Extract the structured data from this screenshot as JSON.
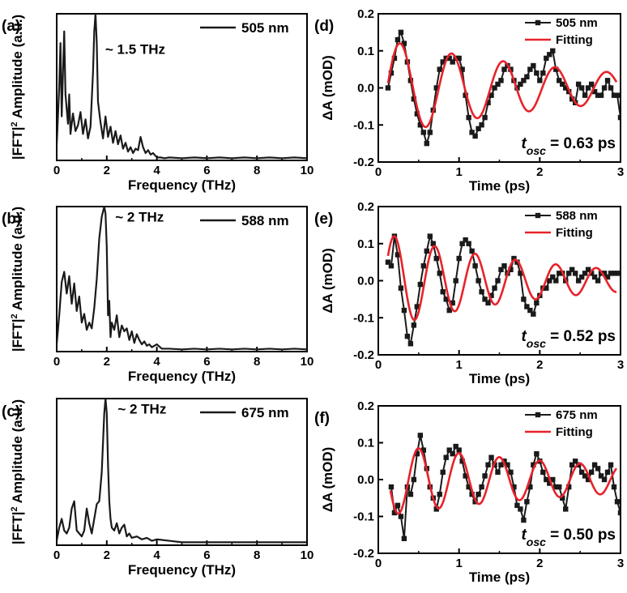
{
  "colors": {
    "data": "#1a1a1a",
    "fit": "#e8222a",
    "axis": "#000000"
  },
  "chart_data": [
    {
      "id": "a",
      "panel_label": "(a)",
      "type": "line",
      "xlabel": "Frequency (THz)",
      "ylabel": "|FFT|² Amplitude (a.u.)",
      "ylabel_parts": [
        "|FFT|",
        "2",
        " Amplitude (a.u.)"
      ],
      "xlim": [
        0,
        10
      ],
      "ylim": [
        0,
        1
      ],
      "xticks": [
        0,
        2,
        4,
        6,
        8,
        10
      ],
      "xtick_labels": [
        "0",
        "2",
        "4",
        "6",
        "8",
        "10"
      ],
      "legend": [
        "505 nm"
      ],
      "annotation": {
        "text": "~ 1.5 THz",
        "x": 1.55,
        "y": 0.76
      },
      "series": [
        {
          "name": "505 nm",
          "x": [
            0.0,
            0.1,
            0.15,
            0.2,
            0.25,
            0.3,
            0.35,
            0.45,
            0.5,
            0.55,
            0.65,
            0.75,
            0.85,
            0.95,
            1.05,
            1.15,
            1.25,
            1.35,
            1.45,
            1.5,
            1.55,
            1.6,
            1.65,
            1.75,
            1.85,
            1.95,
            2.05,
            2.15,
            2.25,
            2.35,
            2.45,
            2.55,
            2.65,
            2.75,
            2.85,
            2.95,
            3.05,
            3.15,
            3.25,
            3.35,
            3.45,
            3.55,
            3.65,
            3.75,
            3.85,
            3.95,
            4.05,
            4.15,
            4.3,
            4.5,
            5.0,
            5.5,
            6.0,
            6.5,
            7.0,
            7.5,
            8.0,
            8.5,
            9.0,
            9.5,
            10.0
          ],
          "y": [
            0.1,
            0.5,
            0.8,
            0.3,
            0.6,
            0.88,
            0.45,
            0.25,
            0.45,
            0.18,
            0.32,
            0.2,
            0.24,
            0.33,
            0.18,
            0.28,
            0.15,
            0.23,
            0.6,
            0.88,
            1.0,
            0.8,
            0.4,
            0.26,
            0.15,
            0.3,
            0.16,
            0.23,
            0.12,
            0.2,
            0.11,
            0.17,
            0.08,
            0.12,
            0.06,
            0.09,
            0.05,
            0.08,
            0.07,
            0.16,
            0.09,
            0.05,
            0.07,
            0.04,
            0.05,
            0.03,
            0.02,
            0.02,
            0.015,
            0.02,
            0.015,
            0.02,
            0.015,
            0.02,
            0.015,
            0.02,
            0.015,
            0.02,
            0.015,
            0.02,
            0.015
          ]
        }
      ]
    },
    {
      "id": "b",
      "panel_label": "(b)",
      "type": "line",
      "xlabel": "Frequency (THz)",
      "ylabel": "|FFT|² Amplitude (a.u.)",
      "ylabel_parts": [
        "|FFT|",
        "2",
        " Amplitude (a.u.)"
      ],
      "xlim": [
        0,
        10
      ],
      "ylim": [
        0,
        1
      ],
      "xticks": [
        0,
        2,
        4,
        6,
        8,
        10
      ],
      "xtick_labels": [
        "0",
        "2",
        "4",
        "6",
        "8",
        "10"
      ],
      "legend": [
        "588 nm"
      ],
      "annotation": {
        "text": "~ 2 THz",
        "x": 1.95,
        "y": 0.93
      },
      "series": [
        {
          "name": "588 nm",
          "x": [
            0.0,
            0.1,
            0.2,
            0.3,
            0.4,
            0.5,
            0.6,
            0.7,
            0.8,
            0.9,
            1.0,
            1.1,
            1.2,
            1.3,
            1.4,
            1.5,
            1.6,
            1.7,
            1.8,
            1.9,
            1.95,
            2.0,
            2.05,
            2.1,
            2.15,
            2.2,
            2.3,
            2.4,
            2.5,
            2.6,
            2.7,
            2.8,
            2.9,
            3.0,
            3.1,
            3.2,
            3.3,
            3.4,
            3.5,
            3.6,
            3.7,
            3.8,
            4.0,
            4.2,
            4.5,
            5.0,
            5.5,
            6.0,
            6.5,
            7.0,
            7.5,
            8.0,
            8.5,
            9.0,
            9.5,
            10.0
          ],
          "y": [
            0.05,
            0.25,
            0.48,
            0.55,
            0.4,
            0.52,
            0.33,
            0.47,
            0.28,
            0.38,
            0.2,
            0.26,
            0.15,
            0.2,
            0.16,
            0.3,
            0.5,
            0.78,
            0.93,
            1.0,
            0.95,
            0.72,
            0.25,
            0.35,
            0.1,
            0.2,
            0.15,
            0.25,
            0.1,
            0.18,
            0.14,
            0.16,
            0.08,
            0.14,
            0.06,
            0.12,
            0.08,
            0.05,
            0.07,
            0.04,
            0.05,
            0.03,
            0.05,
            0.02,
            0.02,
            0.015,
            0.02,
            0.015,
            0.02,
            0.015,
            0.02,
            0.015,
            0.02,
            0.015,
            0.02,
            0.015
          ]
        }
      ]
    },
    {
      "id": "c",
      "panel_label": "(c)",
      "type": "line",
      "xlabel": "Frequency (THz)",
      "ylabel": "|FFT|² Amplitude (a.u.)",
      "ylabel_parts": [
        "|FFT|",
        "2",
        " Amplitude (a.u.)"
      ],
      "xlim": [
        0,
        10
      ],
      "ylim": [
        0,
        1
      ],
      "xticks": [
        0,
        2,
        4,
        6,
        8,
        10
      ],
      "xtick_labels": [
        "0",
        "2",
        "4",
        "6",
        "8",
        "10"
      ],
      "legend": [
        "675 nm"
      ],
      "annotation": {
        "text": "~ 2 THz",
        "x": 2.05,
        "y": 0.93
      },
      "series": [
        {
          "name": "675 nm",
          "x": [
            0.0,
            0.1,
            0.2,
            0.3,
            0.4,
            0.5,
            0.6,
            0.7,
            0.8,
            0.9,
            1.0,
            1.1,
            1.2,
            1.3,
            1.4,
            1.5,
            1.6,
            1.7,
            1.8,
            1.9,
            1.95,
            2.0,
            2.05,
            2.1,
            2.15,
            2.2,
            2.3,
            2.4,
            2.5,
            2.6,
            2.7,
            2.8,
            2.9,
            3.0,
            3.2,
            3.4,
            3.6,
            3.8,
            4.0,
            4.5,
            5.0,
            5.5,
            6.0,
            6.5,
            7.0,
            7.5,
            8.0,
            8.5,
            9.0,
            9.5,
            10.0
          ],
          "y": [
            0.03,
            0.12,
            0.18,
            0.1,
            0.08,
            0.12,
            0.25,
            0.3,
            0.1,
            0.08,
            0.06,
            0.1,
            0.25,
            0.15,
            0.08,
            0.18,
            0.28,
            0.3,
            0.5,
            0.9,
            1.0,
            0.9,
            0.55,
            0.3,
            0.18,
            0.12,
            0.1,
            0.15,
            0.08,
            0.12,
            0.14,
            0.06,
            0.08,
            0.05,
            0.06,
            0.04,
            0.05,
            0.03,
            0.04,
            0.03,
            0.02,
            0.02,
            0.02,
            0.02,
            0.02,
            0.02,
            0.02,
            0.02,
            0.02,
            0.02,
            0.02
          ]
        }
      ]
    },
    {
      "id": "d",
      "panel_label": "(d)",
      "type": "line",
      "xlabel": "Time (ps)",
      "ylabel": "ΔA (mOD)",
      "xlim": [
        0,
        3
      ],
      "ylim": [
        -0.2,
        0.2
      ],
      "xticks": [
        0,
        1,
        2,
        3
      ],
      "xtick_labels": [
        "0",
        "1",
        "2",
        "3"
      ],
      "yticks": [
        -0.2,
        -0.1,
        0.0,
        0.1,
        0.2
      ],
      "ytick_labels": [
        "-0.2",
        "-0.1",
        "0.0",
        "0.1",
        "0.2"
      ],
      "legend": [
        "505 nm",
        "Fitting"
      ],
      "osc_label": {
        "t": "t",
        "sub": "osc",
        "value": " = 0.63 ps"
      },
      "fit": {
        "amplitude": 0.12,
        "period_ps": 0.64,
        "tau_ps": 2.5,
        "peak_t": 0.27,
        "t_start": 0.12,
        "t_end": 2.95
      },
      "series": [
        {
          "name": "505 nm",
          "x": [
            0.12,
            0.16,
            0.2,
            0.24,
            0.28,
            0.32,
            0.36,
            0.4,
            0.44,
            0.48,
            0.52,
            0.56,
            0.6,
            0.64,
            0.68,
            0.72,
            0.76,
            0.8,
            0.84,
            0.88,
            0.92,
            0.96,
            1.0,
            1.04,
            1.08,
            1.12,
            1.16,
            1.2,
            1.24,
            1.28,
            1.32,
            1.36,
            1.4,
            1.44,
            1.48,
            1.52,
            1.56,
            1.6,
            1.64,
            1.68,
            1.72,
            1.76,
            1.8,
            1.84,
            1.88,
            1.92,
            1.96,
            2.0,
            2.04,
            2.08,
            2.12,
            2.16,
            2.2,
            2.24,
            2.28,
            2.32,
            2.36,
            2.4,
            2.44,
            2.48,
            2.52,
            2.56,
            2.6,
            2.64,
            2.68,
            2.72,
            2.76,
            2.8,
            2.84,
            2.88,
            2.92,
            2.96,
            3.0
          ],
          "y": [
            0.0,
            0.04,
            0.08,
            0.13,
            0.15,
            0.12,
            0.07,
            0.02,
            -0.03,
            -0.07,
            -0.1,
            -0.12,
            -0.15,
            -0.12,
            -0.06,
            0.0,
            0.05,
            0.07,
            0.08,
            0.08,
            0.07,
            0.08,
            0.08,
            0.05,
            -0.02,
            -0.08,
            -0.12,
            -0.13,
            -0.11,
            -0.1,
            -0.08,
            -0.04,
            -0.02,
            0.0,
            0.01,
            0.02,
            0.05,
            0.06,
            0.05,
            0.02,
            0.0,
            0.01,
            0.02,
            0.03,
            0.05,
            0.06,
            0.04,
            0.02,
            0.04,
            0.08,
            0.09,
            0.1,
            0.05,
            0.02,
            0.01,
            0.0,
            -0.01,
            -0.03,
            -0.04,
            0.01,
            0.0,
            -0.02,
            0.0,
            0.01,
            -0.01,
            -0.02,
            -0.02,
            0.0,
            0.02,
            0.0,
            -0.02,
            -0.02,
            -0.08
          ]
        }
      ]
    },
    {
      "id": "e",
      "panel_label": "(e)",
      "type": "line",
      "xlabel": "Time (ps)",
      "ylabel": "ΔA (mOD)",
      "xlim": [
        0,
        3
      ],
      "ylim": [
        -0.2,
        0.2
      ],
      "xticks": [
        0,
        1,
        2,
        3
      ],
      "xtick_labels": [
        "0",
        "1",
        "2",
        "3"
      ],
      "yticks": [
        -0.2,
        -0.1,
        0.0,
        0.1,
        0.2
      ],
      "ytick_labels": [
        "-0.2",
        "-0.1",
        "0.0",
        "0.1",
        "0.2"
      ],
      "legend": [
        "588 nm",
        "Fitting"
      ],
      "osc_label": {
        "t": "t",
        "sub": "osc",
        "value": " = 0.52 ps"
      },
      "fit": {
        "amplitude": 0.12,
        "period_ps": 0.5,
        "tau_ps": 2.0,
        "peak_t": 0.2,
        "t_start": 0.12,
        "t_end": 2.95
      },
      "series": [
        {
          "name": "588 nm",
          "x": [
            0.12,
            0.16,
            0.2,
            0.24,
            0.28,
            0.32,
            0.36,
            0.4,
            0.44,
            0.48,
            0.52,
            0.56,
            0.6,
            0.64,
            0.68,
            0.72,
            0.76,
            0.8,
            0.84,
            0.88,
            0.92,
            0.96,
            1.0,
            1.04,
            1.08,
            1.12,
            1.16,
            1.2,
            1.24,
            1.28,
            1.32,
            1.36,
            1.4,
            1.44,
            1.48,
            1.52,
            1.56,
            1.6,
            1.64,
            1.68,
            1.72,
            1.76,
            1.8,
            1.84,
            1.88,
            1.92,
            1.96,
            2.0,
            2.04,
            2.08,
            2.12,
            2.16,
            2.2,
            2.24,
            2.28,
            2.32,
            2.36,
            2.4,
            2.44,
            2.48,
            2.52,
            2.56,
            2.6,
            2.64,
            2.68,
            2.72,
            2.76,
            2.8,
            2.84,
            2.88,
            2.92,
            2.96,
            3.0
          ],
          "y": [
            0.05,
            0.04,
            0.12,
            0.07,
            -0.02,
            -0.08,
            -0.15,
            -0.17,
            -0.12,
            -0.07,
            -0.01,
            0.04,
            0.08,
            0.12,
            0.1,
            0.06,
            0.02,
            -0.03,
            -0.05,
            -0.08,
            -0.06,
            0.0,
            0.06,
            0.1,
            0.11,
            0.1,
            0.08,
            0.04,
            0.0,
            -0.03,
            -0.05,
            -0.06,
            -0.04,
            -0.02,
            0.0,
            0.03,
            0.04,
            0.02,
            0.03,
            0.06,
            0.05,
            0.02,
            -0.05,
            -0.07,
            -0.08,
            -0.09,
            -0.06,
            -0.04,
            -0.02,
            -0.02,
            0.0,
            0.01,
            0.0,
            0.02,
            0.02,
            0.0,
            0.02,
            0.03,
            0.02,
            0.0,
            0.01,
            0.02,
            0.03,
            0.02,
            0.01,
            0.0,
            0.02,
            0.02,
            0.01,
            0.02,
            0.02,
            0.02,
            0.02
          ]
        }
      ]
    },
    {
      "id": "f",
      "panel_label": "(f)",
      "type": "line",
      "xlabel": "Time (ps)",
      "ylabel": "ΔA (mOD)",
      "xlim": [
        0,
        3
      ],
      "ylim": [
        -0.2,
        0.2
      ],
      "xticks": [
        0,
        1,
        2,
        3
      ],
      "xtick_labels": [
        "0",
        "1",
        "2",
        "3"
      ],
      "yticks": [
        -0.2,
        -0.1,
        0.0,
        0.1,
        0.2
      ],
      "ytick_labels": [
        "-0.2",
        "-0.1",
        "0.0",
        "0.1",
        "0.2"
      ],
      "legend": [
        "675 nm",
        "Fitting"
      ],
      "osc_label": {
        "t": "t",
        "sub": "osc",
        "value": " = 0.50 ps"
      },
      "fit": {
        "amplitude": 0.085,
        "period_ps": 0.5,
        "tau_ps": 3.0,
        "peak_t": 0.5,
        "t_start": 0.15,
        "t_end": 2.95
      },
      "series": [
        {
          "name": "675 nm",
          "x": [
            0.16,
            0.2,
            0.24,
            0.28,
            0.32,
            0.36,
            0.4,
            0.44,
            0.48,
            0.52,
            0.56,
            0.6,
            0.64,
            0.68,
            0.72,
            0.76,
            0.8,
            0.84,
            0.88,
            0.92,
            0.96,
            1.0,
            1.04,
            1.08,
            1.12,
            1.16,
            1.2,
            1.24,
            1.28,
            1.32,
            1.36,
            1.4,
            1.44,
            1.48,
            1.52,
            1.56,
            1.6,
            1.64,
            1.68,
            1.72,
            1.76,
            1.8,
            1.84,
            1.88,
            1.92,
            1.96,
            2.0,
            2.04,
            2.08,
            2.12,
            2.16,
            2.2,
            2.24,
            2.28,
            2.32,
            2.36,
            2.4,
            2.44,
            2.48,
            2.52,
            2.56,
            2.6,
            2.64,
            2.68,
            2.72,
            2.76,
            2.8,
            2.84,
            2.88,
            2.92,
            2.96,
            3.0
          ],
          "y": [
            -0.02,
            -0.09,
            -0.07,
            -0.1,
            -0.16,
            -0.02,
            -0.04,
            0.0,
            0.07,
            0.12,
            0.08,
            0.03,
            -0.02,
            -0.05,
            -0.08,
            -0.04,
            0.02,
            0.06,
            0.08,
            0.07,
            0.09,
            0.08,
            0.05,
            0.01,
            -0.02,
            -0.04,
            -0.06,
            -0.04,
            -0.02,
            0.01,
            0.04,
            0.06,
            0.04,
            0.02,
            0.04,
            0.05,
            0.04,
            0.02,
            -0.02,
            -0.07,
            -0.08,
            -0.11,
            -0.06,
            -0.02,
            0.04,
            0.07,
            0.05,
            0.02,
            0.0,
            -0.01,
            0.0,
            -0.02,
            -0.02,
            -0.05,
            -0.08,
            -0.02,
            0.04,
            0.05,
            0.04,
            0.02,
            0.01,
            0.0,
            0.02,
            0.04,
            0.03,
            0.01,
            0.0,
            0.02,
            0.04,
            -0.02,
            -0.06,
            -0.09
          ]
        }
      ]
    }
  ]
}
